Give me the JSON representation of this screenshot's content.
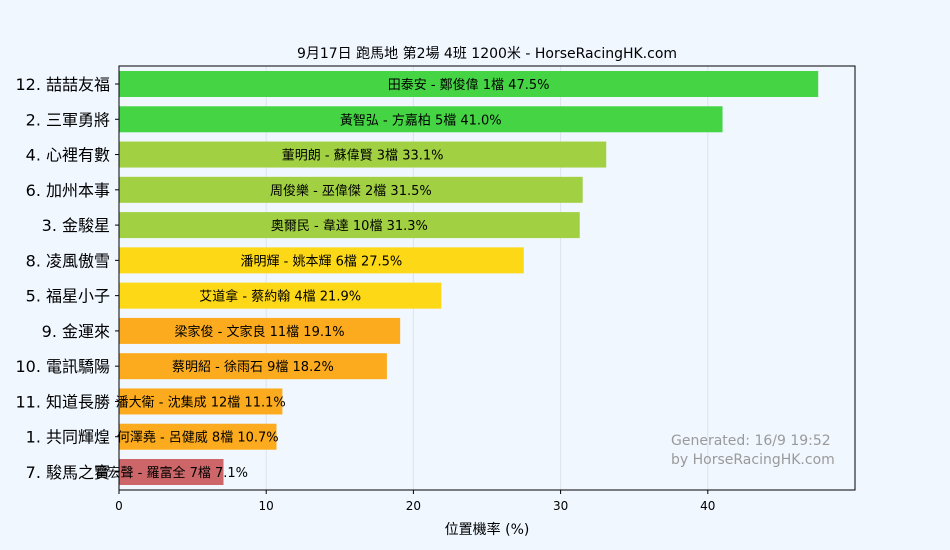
{
  "chart_data": {
    "type": "bar",
    "orientation": "horizontal",
    "title": "9月17日  跑馬地  第2場  4班  1200米 - HorseRacingHK.com",
    "xlabel": "位置機率 (%)",
    "ylabel": "",
    "xlim": [
      0,
      50
    ],
    "x_ticks": [
      0,
      10,
      20,
      30,
      40
    ],
    "grid": true,
    "categories": [
      "12. 喆喆友福",
      "2. 三軍勇將",
      "4. 心裡有數",
      "6. 加州本事",
      "3. 金駿星",
      "8. 凌風傲雪",
      "5. 福星小子",
      "9. 金運來",
      "10. 電訊驕陽",
      "11. 知道長勝",
      "1. 共同輝煌",
      "7. 駿馬之寶"
    ],
    "values": [
      47.5,
      41.0,
      33.1,
      31.5,
      31.3,
      27.5,
      21.9,
      19.1,
      18.2,
      11.1,
      10.7,
      7.1
    ],
    "bar_labels": [
      "田泰安 - 鄭俊偉 1檔  47.5%",
      "黃智弘 - 方嘉柏 5檔  41.0%",
      "董明朗 - 蘇偉賢 3檔  33.1%",
      "周俊樂 - 巫偉傑 2檔  31.5%",
      "奧爾民 - 韋達 10檔  31.3%",
      "潘明輝 - 姚本輝 6檔  27.5%",
      "艾道拿 - 蔡約翰 4檔  21.9%",
      "梁家俊 - 文家良 11檔  19.1%",
      "蔡明紹 - 徐雨石 9檔  18.2%",
      "潘大衛 - 沈集成 12檔  11.1%",
      "何澤堯 - 呂健威 8檔  10.7%",
      "霍宏聲 - 羅富全 7檔  7.1%"
    ],
    "colors": [
      "#44d444",
      "#44d444",
      "#a2d043",
      "#a2d043",
      "#a2d043",
      "#fcd816",
      "#fcd816",
      "#fcab1e",
      "#fcab1e",
      "#fcab1e",
      "#fcab1e",
      "#cd6668"
    ],
    "watermark": [
      "Generated: 16/9 19:52",
      "by HorseRacingHK.com"
    ]
  },
  "theme": {
    "background": "#f0f7ff",
    "plot_background": "#f0f7ff",
    "grid_color": "#dde3ea",
    "watermark_color": "#9a9a9a"
  }
}
